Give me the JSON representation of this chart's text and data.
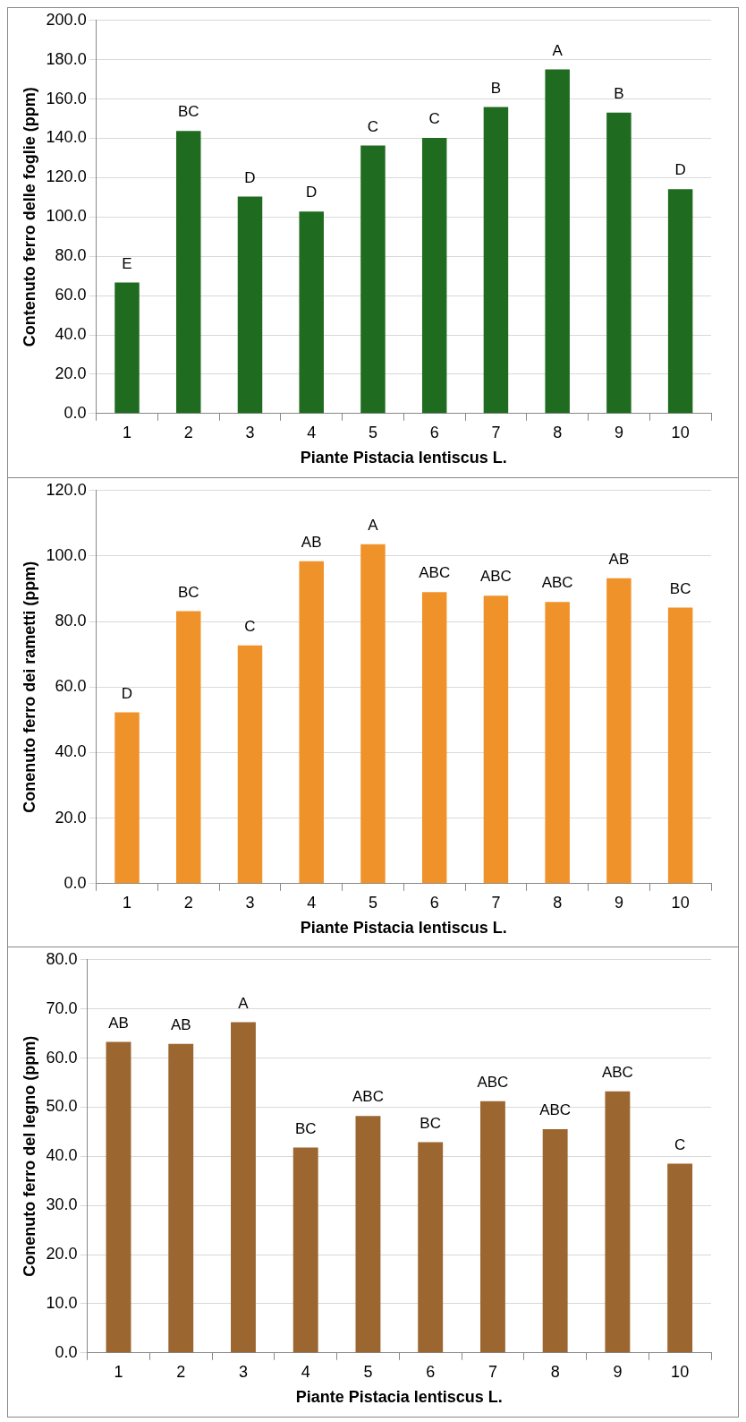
{
  "chart_data": [
    {
      "type": "bar",
      "categories": [
        "1",
        "2",
        "3",
        "4",
        "5",
        "6",
        "7",
        "8",
        "9",
        "10"
      ],
      "values": [
        66.6,
        143.8,
        110.4,
        102.8,
        136.3,
        140.2,
        156.0,
        175.1,
        153.1,
        114.2
      ],
      "color": "#1f6b1f",
      "ylabel": "Contenuto ferro delle foglie (ppm)",
      "xlabel": "Piante Pistacia lentiscus L.",
      "ylim": [
        0,
        200
      ],
      "yticks": [
        {
          "value": 0,
          "label": "0.0"
        },
        {
          "value": 20,
          "label": "20.0"
        },
        {
          "value": 40,
          "label": "40.0"
        },
        {
          "value": 60,
          "label": "60.0"
        },
        {
          "value": 80,
          "label": "80.0"
        },
        {
          "value": 100,
          "label": "100.0"
        },
        {
          "value": 120,
          "label": "120.0"
        },
        {
          "value": 140,
          "label": "140.0"
        },
        {
          "value": 160,
          "label": "160.0"
        },
        {
          "value": 180,
          "label": "180.0"
        },
        {
          "value": 200,
          "label": "200.0"
        }
      ],
      "grid": "y",
      "annotations": [
        {
          "text": "E",
          "x": "1",
          "y": 66.6
        },
        {
          "text": "BC",
          "x": "2",
          "y": 143.8
        },
        {
          "text": "D",
          "x": "3",
          "y": 110.4
        },
        {
          "text": "D",
          "x": "4",
          "y": 102.8
        },
        {
          "text": "C",
          "x": "5",
          "y": 136.3
        },
        {
          "text": "C",
          "x": "6",
          "y": 140.2
        },
        {
          "text": "B",
          "x": "7",
          "y": 156.0
        },
        {
          "text": "A",
          "x": "8",
          "y": 175.1
        },
        {
          "text": "B",
          "x": "9",
          "y": 153.1
        },
        {
          "text": "D",
          "x": "10",
          "y": 114.2
        }
      ]
    },
    {
      "type": "bar",
      "categories": [
        "1",
        "2",
        "3",
        "4",
        "5",
        "6",
        "7",
        "8",
        "9",
        "10"
      ],
      "values": [
        52.3,
        83.2,
        72.7,
        98.4,
        103.6,
        89.0,
        87.9,
        86.0,
        93.2,
        84.3
      ],
      "color": "#f0922a",
      "ylabel": "Conenuto ferro dei rametti (ppm)",
      "xlabel": "Piante Pistacia lentiscus L.",
      "ylim": [
        0,
        120
      ],
      "yticks": [
        {
          "value": 0,
          "label": "0.0"
        },
        {
          "value": 20,
          "label": "20.0"
        },
        {
          "value": 40,
          "label": "40.0"
        },
        {
          "value": 60,
          "label": "60.0"
        },
        {
          "value": 80,
          "label": "80.0"
        },
        {
          "value": 100,
          "label": "100.0"
        },
        {
          "value": 120,
          "label": "120.0"
        }
      ],
      "grid": "y",
      "annotations": [
        {
          "text": "D",
          "x": "1",
          "y": 52.3
        },
        {
          "text": "BC",
          "x": "2",
          "y": 83.2
        },
        {
          "text": "C",
          "x": "3",
          "y": 72.7
        },
        {
          "text": "AB",
          "x": "4",
          "y": 98.4
        },
        {
          "text": "A",
          "x": "5",
          "y": 103.6
        },
        {
          "text": "ABC",
          "x": "6",
          "y": 89.0
        },
        {
          "text": "ABC",
          "x": "7",
          "y": 87.9
        },
        {
          "text": "ABC",
          "x": "8",
          "y": 86.0
        },
        {
          "text": "AB",
          "x": "9",
          "y": 93.2
        },
        {
          "text": "BC",
          "x": "10",
          "y": 84.3
        }
      ]
    },
    {
      "type": "bar",
      "categories": [
        "1",
        "2",
        "3",
        "4",
        "5",
        "6",
        "7",
        "8",
        "9",
        "10"
      ],
      "values": [
        63.3,
        62.9,
        67.3,
        41.8,
        48.2,
        42.9,
        51.2,
        45.5,
        53.2,
        38.5
      ],
      "color": "#9c6630",
      "ylabel": "Conenuto ferro del legno (ppm)",
      "xlabel": "Piante Pistacia lentiscus L.",
      "ylim": [
        0,
        80
      ],
      "yticks": [
        {
          "value": 0,
          "label": "0.0"
        },
        {
          "value": 10,
          "label": "10.0"
        },
        {
          "value": 20,
          "label": "20.0"
        },
        {
          "value": 30,
          "label": "30.0"
        },
        {
          "value": 40,
          "label": "40.0"
        },
        {
          "value": 50,
          "label": "50.0"
        },
        {
          "value": 60,
          "label": "60.0"
        },
        {
          "value": 70,
          "label": "70.0"
        },
        {
          "value": 80,
          "label": "80.0"
        }
      ],
      "grid": "y",
      "annotations": [
        {
          "text": "AB",
          "x": "1",
          "y": 63.3
        },
        {
          "text": "AB",
          "x": "2",
          "y": 62.9
        },
        {
          "text": "A",
          "x": "3",
          "y": 67.3
        },
        {
          "text": "BC",
          "x": "4",
          "y": 41.8
        },
        {
          "text": "ABC",
          "x": "5",
          "y": 48.2
        },
        {
          "text": "BC",
          "x": "6",
          "y": 42.9
        },
        {
          "text": "ABC",
          "x": "7",
          "y": 51.2
        },
        {
          "text": "ABC",
          "x": "8",
          "y": 45.5
        },
        {
          "text": "ABC",
          "x": "9",
          "y": 53.2
        },
        {
          "text": "C",
          "x": "10",
          "y": 38.5
        }
      ]
    }
  ]
}
